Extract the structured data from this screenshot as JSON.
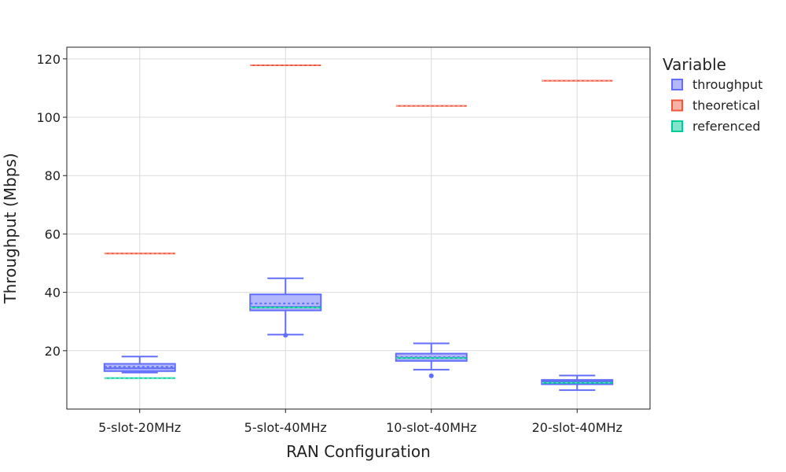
{
  "chart_data": {
    "type": "box",
    "xlabel": "RAN Configuration",
    "ylabel": "Throughput (Mbps)",
    "ylim": [
      0,
      124
    ],
    "yticks": [
      20,
      40,
      60,
      80,
      100,
      120
    ],
    "grid": true,
    "legend": {
      "title": "Variable",
      "placement": "right",
      "entries": [
        "throughput",
        "theoretical",
        "referenced"
      ]
    },
    "colors": {
      "throughput_stroke": "#636efa",
      "throughput_fill": "#b3b8fc",
      "theoretical_stroke": "#ef553b",
      "theoretical_fill": "#f8b2a5",
      "referenced_stroke": "#00cc96",
      "referenced_fill": "#80e5cb"
    },
    "categories": [
      "5-slot-20MHz",
      "5-slot-40MHz",
      "10-slot-40MHz",
      "20-slot-40MHz"
    ],
    "series": [
      {
        "name": "throughput",
        "boxes": [
          {
            "min": 12.5,
            "q1": 13.0,
            "median": 14.0,
            "mean": 14.5,
            "q3": 15.5,
            "max": 18.0,
            "outliers": []
          },
          {
            "min": 25.5,
            "q1": 33.8,
            "median": 35.0,
            "mean": 36.2,
            "q3": 39.3,
            "max": 44.8,
            "outliers": [
              25.3
            ]
          },
          {
            "min": 13.5,
            "q1": 16.5,
            "median": 17.5,
            "mean": 17.8,
            "q3": 19.0,
            "max": 22.5,
            "outliers": [
              11.4
            ]
          },
          {
            "min": 6.5,
            "q1": 8.5,
            "median": 9.5,
            "mean": 9.5,
            "q3": 10.0,
            "max": 11.5,
            "outliers": []
          }
        ]
      },
      {
        "name": "theoretical",
        "values": [
          53.3,
          117.8,
          103.9,
          112.5
        ]
      },
      {
        "name": "referenced",
        "values": [
          10.6,
          34.8,
          17.5,
          9.0
        ]
      }
    ]
  }
}
